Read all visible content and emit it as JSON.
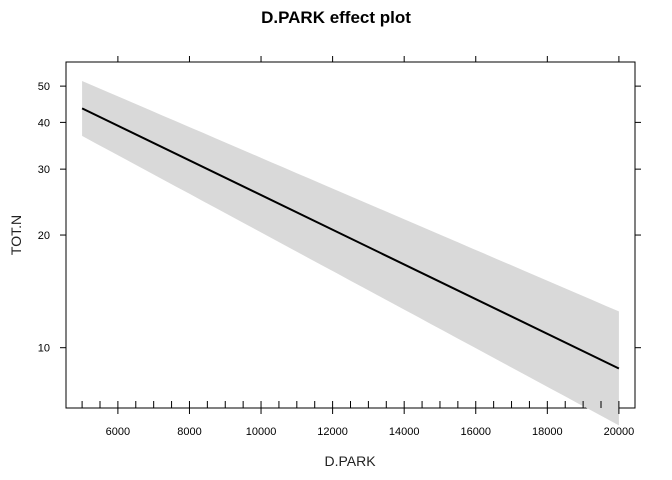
{
  "chart_data": {
    "type": "line",
    "title": "D.PARK effect plot",
    "xlabel": "D.PARK",
    "ylabel": "TOT.N",
    "xlim": [
      4550,
      20450
    ],
    "ylim": [
      6.9,
      58
    ],
    "y_scale": "log",
    "x_ticks": [
      6000,
      8000,
      10000,
      12000,
      14000,
      16000,
      18000,
      20000
    ],
    "x_tick_labels": [
      "6000",
      "8000",
      "10000",
      "12000",
      "14000",
      "16000",
      "18000",
      "20000"
    ],
    "x_rug": [
      5000,
      5500,
      6000,
      6500,
      7000,
      7500,
      8000,
      8500,
      9000,
      9500,
      10000,
      10500,
      11000,
      11500,
      12000,
      12500,
      13000,
      13500,
      14000,
      14500,
      15000,
      15500,
      16000,
      16500,
      17000,
      17500,
      18000,
      18500,
      19000,
      19500,
      20000
    ],
    "y_ticks": [
      10,
      20,
      30,
      40,
      50
    ],
    "y_tick_labels": [
      "10",
      "20",
      "30",
      "40",
      "50"
    ],
    "grid": false,
    "series": [
      {
        "x": [
          5000,
          20000
        ],
        "fit": [
          43.6,
          8.8
        ],
        "lower": [
          36.8,
          6.2
        ],
        "upper": [
          51.6,
          12.5
        ],
        "line_color": "#000000",
        "band_color": "#d9d9d9"
      }
    ]
  }
}
